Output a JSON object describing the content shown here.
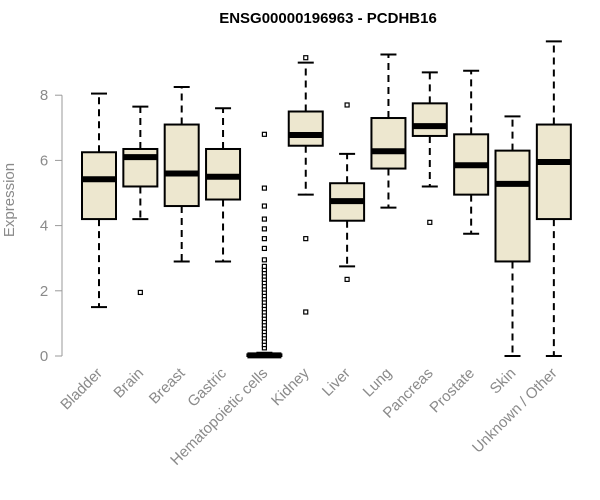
{
  "colors": {
    "box_fill": "#EDE7CF",
    "box_stroke": "#000000",
    "axis": "#9a9a9a",
    "text": "#8a8a8a"
  },
  "chart_data": {
    "type": "box",
    "title": "ENSG00000196963 - PCDHB16",
    "xlabel": "",
    "ylabel": "Expression",
    "ylim": [
      0,
      9.8
    ],
    "yticks": [
      0,
      2,
      4,
      6,
      8
    ],
    "categories": [
      "Bladder",
      "Brain",
      "Breast",
      "Gastric",
      "Hematopoietic cells",
      "Kidney",
      "Liver",
      "Lung",
      "Pancreas",
      "Prostate",
      "Skin",
      "Unknown / Other"
    ],
    "boxes": [
      {
        "category": "Bladder",
        "whisker_low": 1.5,
        "q1": 4.2,
        "median": 5.42,
        "q3": 6.25,
        "whisker_high": 8.05,
        "outliers": []
      },
      {
        "category": "Brain",
        "whisker_low": 4.2,
        "q1": 5.2,
        "median": 6.1,
        "q3": 6.35,
        "whisker_high": 7.65,
        "outliers": [
          1.95
        ]
      },
      {
        "category": "Breast",
        "whisker_low": 2.9,
        "q1": 4.6,
        "median": 5.6,
        "q3": 7.1,
        "whisker_high": 8.25,
        "outliers": []
      },
      {
        "category": "Gastric",
        "whisker_low": 2.9,
        "q1": 4.8,
        "median": 5.5,
        "q3": 6.35,
        "whisker_high": 7.6,
        "outliers": []
      },
      {
        "category": "Hematopoietic cells",
        "whisker_low": 0.0,
        "q1": 0.0,
        "median": 0.02,
        "q3": 0.05,
        "whisker_high": 0.1,
        "outliers": [
          0.25,
          0.35,
          0.45,
          0.55,
          0.65,
          0.75,
          0.85,
          0.95,
          1.05,
          1.15,
          1.25,
          1.35,
          1.45,
          1.55,
          1.65,
          1.75,
          1.85,
          1.95,
          2.05,
          2.15,
          2.25,
          2.35,
          2.45,
          2.55,
          2.65,
          2.75,
          2.95,
          3.3,
          3.6,
          3.9,
          4.2,
          4.6,
          5.15,
          6.8
        ]
      },
      {
        "category": "Kidney",
        "whisker_low": 4.95,
        "q1": 6.45,
        "median": 6.78,
        "q3": 7.5,
        "whisker_high": 9.0,
        "outliers": [
          1.35,
          3.6,
          9.15
        ]
      },
      {
        "category": "Liver",
        "whisker_low": 2.75,
        "q1": 4.15,
        "median": 4.75,
        "q3": 5.3,
        "whisker_high": 6.2,
        "outliers": [
          2.35,
          7.7
        ]
      },
      {
        "category": "Lung",
        "whisker_low": 4.55,
        "q1": 5.75,
        "median": 6.28,
        "q3": 7.3,
        "whisker_high": 9.25,
        "outliers": []
      },
      {
        "category": "Pancreas",
        "whisker_low": 5.2,
        "q1": 6.75,
        "median": 7.05,
        "q3": 7.75,
        "whisker_high": 8.7,
        "outliers": [
          4.1
        ]
      },
      {
        "category": "Prostate",
        "whisker_low": 3.75,
        "q1": 4.95,
        "median": 5.85,
        "q3": 6.8,
        "whisker_high": 8.75,
        "outliers": []
      },
      {
        "category": "Skin",
        "whisker_low": 0.0,
        "q1": 2.9,
        "median": 5.28,
        "q3": 6.3,
        "whisker_high": 7.35,
        "outliers": []
      },
      {
        "category": "Unknown / Other",
        "whisker_low": 0.0,
        "q1": 4.2,
        "median": 5.95,
        "q3": 7.1,
        "whisker_high": 9.65,
        "outliers": []
      }
    ]
  }
}
